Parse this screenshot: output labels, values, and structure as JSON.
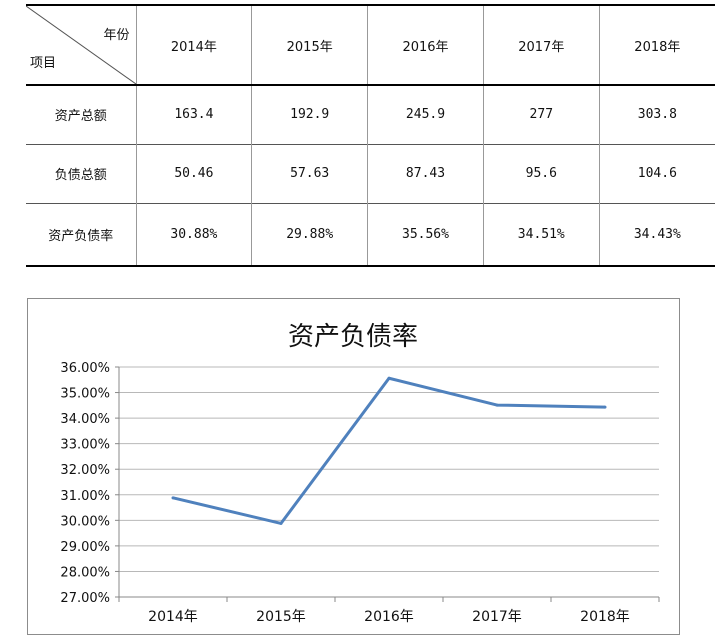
{
  "table": {
    "corner_top": "年份",
    "corner_bottom": "项目",
    "years": [
      "2014年",
      "2015年",
      "2016年",
      "2017年",
      "2018年"
    ],
    "rows": [
      {
        "label": "资产总额",
        "values": [
          "163.4",
          "192.9",
          "245.9",
          "277",
          "303.8"
        ]
      },
      {
        "label": "负债总额",
        "values": [
          "50.46",
          "57.63",
          "87.43",
          "95.6",
          "104.6"
        ]
      },
      {
        "label": "资产负债率",
        "values": [
          "30.88%",
          "29.88%",
          "35.56%",
          "34.51%",
          "34.43%"
        ]
      }
    ]
  },
  "chart_data": {
    "type": "line",
    "title": "资产负债率",
    "categories": [
      "2014年",
      "2015年",
      "2016年",
      "2017年",
      "2018年"
    ],
    "series": [
      {
        "values": [
          30.88,
          29.88,
          35.56,
          34.51,
          34.43
        ],
        "color": "#4f81bd"
      }
    ],
    "ylim": [
      27,
      36
    ],
    "y_ticks": [
      "27.00%",
      "28.00%",
      "29.00%",
      "30.00%",
      "31.00%",
      "32.00%",
      "33.00%",
      "34.00%",
      "35.00%",
      "36.00%"
    ],
    "grid": true,
    "legend": "none"
  }
}
